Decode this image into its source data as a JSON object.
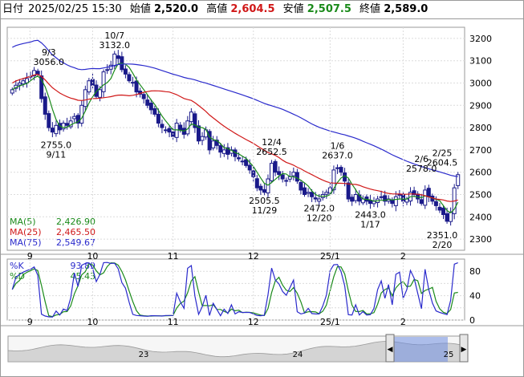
{
  "info_bar": {
    "date_label": "日付",
    "datetime": "2025/02/25 15:30",
    "open_label": "始値",
    "open": "2,520.0",
    "high_label": "高値",
    "high": "2,604.5",
    "low_label": "安値",
    "low": "2,507.5",
    "close_label": "終値",
    "close": "2,589.0"
  },
  "colors": {
    "up_candle": "#ffffff",
    "down_candle": "#1a1a8a",
    "ma5": "#1a8a1a",
    "ma25": "#d01818",
    "ma75": "#2a2acc",
    "percent_k": "#2a2acc",
    "percent_d": "#1a8a1a",
    "high_value": "#d01818",
    "low_value": "#1a8a1a"
  },
  "legend": [
    {
      "name": "MA(5)",
      "value": "2,426.90",
      "color": "#1a8a1a"
    },
    {
      "name": "MA(25)",
      "value": "2,465.50",
      "color": "#d01818"
    },
    {
      "name": "MA(75)",
      "value": "2,549.67",
      "color": "#2a2acc"
    }
  ],
  "stoch_legend": [
    {
      "name": "%K",
      "value": "93.89",
      "color": "#2a2acc"
    },
    {
      "name": "%D",
      "value": "45.43",
      "color": "#1a8a1a"
    }
  ],
  "chart_data": {
    "type": "candlestick",
    "price_axis": {
      "min": 2250,
      "max": 3250,
      "ticks": [
        2300,
        2400,
        2500,
        2600,
        2700,
        2800,
        2900,
        3000,
        3100,
        3200
      ]
    },
    "month_labels": [
      "9",
      "10",
      "11",
      "12",
      "25/1",
      "2"
    ],
    "annotations": [
      {
        "date": "9/3",
        "value": "3056.0",
        "type": "high"
      },
      {
        "date": "10/7",
        "value": "3132.0",
        "type": "high"
      },
      {
        "date": "9/11",
        "value": "2755.0",
        "type": "low"
      },
      {
        "date": "12/4",
        "value": "2652.5",
        "type": "high"
      },
      {
        "date": "11/29",
        "value": "2505.5",
        "type": "low"
      },
      {
        "date": "1/6",
        "value": "2637.0",
        "type": "high"
      },
      {
        "date": "12/20",
        "value": "2472.0",
        "type": "low"
      },
      {
        "date": "1/17",
        "value": "2443.0",
        "type": "low"
      },
      {
        "date": "2/6",
        "value": "2578.0",
        "type": "high"
      },
      {
        "date": "2/25",
        "value": "2604.5",
        "type": "high"
      },
      {
        "date": "2/20",
        "value": "2351.0",
        "type": "low"
      }
    ],
    "closes": [
      2970,
      2990,
      3000,
      3010,
      3020,
      3030,
      3056,
      3040,
      2930,
      2860,
      2800,
      2780,
      2810,
      2790,
      2820,
      2810,
      2830,
      2850,
      2820,
      2900,
      2970,
      3010,
      2990,
      2940,
      2970,
      3050,
      3060,
      3080,
      3130,
      3110,
      3060,
      3040,
      3010,
      3000,
      2960,
      2950,
      2930,
      2900,
      2880,
      2860,
      2820,
      2800,
      2790,
      2780,
      2760,
      2820,
      2790,
      2770,
      2830,
      2870,
      2800,
      2740,
      2760,
      2790,
      2700,
      2740,
      2720,
      2690,
      2700,
      2680,
      2700,
      2670,
      2660,
      2650,
      2630,
      2610,
      2580,
      2530,
      2520,
      2510,
      2570,
      2640,
      2600,
      2590,
      2570,
      2560,
      2580,
      2600,
      2560,
      2520,
      2500,
      2510,
      2490,
      2480,
      2480,
      2500,
      2510,
      2530,
      2610,
      2620,
      2600,
      2560,
      2480,
      2470,
      2500,
      2470,
      2480,
      2470,
      2460,
      2470,
      2480,
      2490,
      2470,
      2480,
      2460,
      2490,
      2500,
      2470,
      2480,
      2510,
      2500,
      2480,
      2460,
      2520,
      2490,
      2470,
      2450,
      2430,
      2410,
      2380,
      2420,
      2530,
      2589
    ],
    "ma5_last": 2426.9,
    "ma25_last": 2465.5,
    "ma75_last": 2549.67,
    "stoch_axis": {
      "min": 0,
      "max": 100,
      "ticks": [
        0,
        20,
        40,
        60,
        80
      ]
    },
    "k_last": 93.89,
    "d_last": 45.43
  },
  "scrollbar": {
    "year_labels": [
      "23",
      "24",
      "25"
    ],
    "left_arrow": "◀",
    "right_arrow": "▶"
  }
}
